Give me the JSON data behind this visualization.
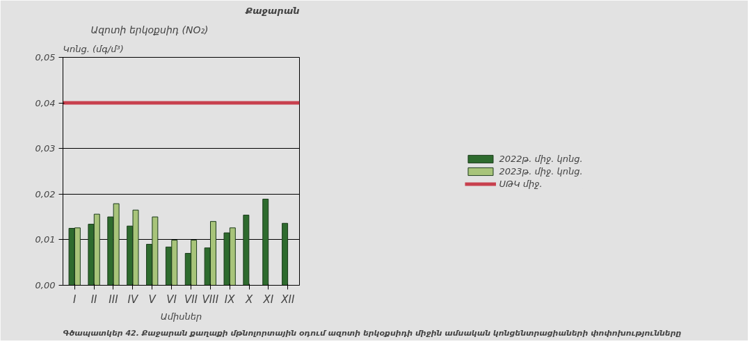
{
  "chart_data": {
    "type": "bar",
    "title": "Ազոտի երկօքսիդ (NO₂)",
    "subtitle": "Քաջարան",
    "ylabel": "Կոնց. (մգ/մ³)",
    "xlabel": "Ամիսներ",
    "categories": [
      "I",
      "II",
      "III",
      "IV",
      "V",
      "VI",
      "VII",
      "VIII",
      "IX",
      "X",
      "XI",
      "XII"
    ],
    "series": [
      {
        "name": "2022թ. միջ. կոնց.",
        "color": "#2e6b2e",
        "values": [
          0.0125,
          0.0134,
          0.015,
          0.013,
          0.009,
          0.0084,
          0.007,
          0.0082,
          0.0115,
          0.0154,
          0.0189,
          0.0136
        ]
      },
      {
        "name": "2023թ. միջ. կոնց.",
        "color": "#a8c47a",
        "values": [
          0.0126,
          0.0156,
          0.0179,
          0.0165,
          0.015,
          0.0099,
          0.0099,
          0.014,
          0.0126,
          null,
          null,
          null
        ]
      }
    ],
    "ref_lines": [
      {
        "axis": "y",
        "value": 0.04,
        "label": "ՍԹԿ միջ.",
        "color": "#c8404e"
      }
    ],
    "ylim": [
      0,
      0.05
    ],
    "yticks": [
      {
        "value": 0,
        "label": "0,00"
      },
      {
        "value": 0.01,
        "label": "0,01"
      },
      {
        "value": 0.02,
        "label": "0,02"
      },
      {
        "value": 0.03,
        "label": "0,03"
      },
      {
        "value": 0.04,
        "label": "0,04"
      },
      {
        "value": 0.05,
        "label": "0,05"
      }
    ],
    "grid": "y",
    "legend": "right",
    "annotations": [
      "Գծապատկեր 42. Քաջարան քաղաքի մթնոլորտային օդում ազոտի երկօքսիդի միջին ամսական կոնցենտրացիաների փոփոխությունները"
    ]
  }
}
